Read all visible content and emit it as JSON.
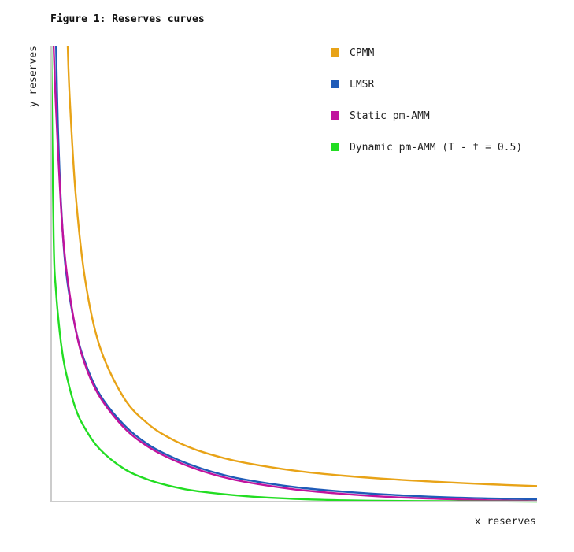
{
  "chart_data": {
    "type": "line",
    "title": "Figure 1: Reserves curves",
    "xlabel": "x reserves",
    "ylabel": "y reserves",
    "xlim": [
      0,
      10
    ],
    "ylim": [
      0,
      10
    ],
    "grid": false,
    "legend_position": "top-right",
    "series": [
      {
        "name": "CPMM",
        "color": "#e8a317",
        "x": [
          0.34,
          0.38,
          0.5,
          0.7,
          1.0,
          1.5,
          2.0,
          2.5,
          3.0,
          3.5,
          4.0,
          5.0,
          6.0,
          7.0,
          8.0,
          9.0,
          10.0
        ],
        "y": [
          10.0,
          8.9,
          6.8,
          4.86,
          3.4,
          2.27,
          1.7,
          1.36,
          1.13,
          0.97,
          0.85,
          0.68,
          0.57,
          0.49,
          0.43,
          0.38,
          0.34
        ]
      },
      {
        "name": "LMSR",
        "color": "#1f5bb8",
        "x": [
          0.1,
          0.14,
          0.2,
          0.3,
          0.5,
          0.7,
          1.0,
          1.5,
          2.0,
          2.5,
          3.0,
          3.5,
          4.0,
          5.0,
          6.0,
          7.0,
          8.0,
          9.0,
          10.0
        ],
        "y": [
          10.0,
          8.2,
          6.6,
          5.1,
          3.8,
          3.05,
          2.35,
          1.68,
          1.25,
          0.97,
          0.76,
          0.6,
          0.48,
          0.32,
          0.22,
          0.15,
          0.1,
          0.07,
          0.05
        ]
      },
      {
        "name": "Static pm-AMM",
        "color": "#c0139e",
        "x": [
          0.05,
          0.1,
          0.2,
          0.3,
          0.5,
          0.7,
          1.0,
          1.5,
          2.0,
          2.5,
          3.0,
          3.5,
          4.0,
          5.0,
          6.0,
          7.0,
          8.0,
          9.0,
          10.0
        ],
        "y": [
          10.0,
          8.6,
          6.5,
          5.2,
          3.8,
          3.0,
          2.3,
          1.62,
          1.2,
          0.92,
          0.71,
          0.55,
          0.43,
          0.27,
          0.17,
          0.1,
          0.06,
          0.03,
          0.01
        ]
      },
      {
        "name": "Dynamic pm-AMM (T - t = 0.5)",
        "color": "#22dd22",
        "x": [
          0.0,
          0.05,
          0.1,
          0.2,
          0.3,
          0.5,
          0.7,
          1.0,
          1.5,
          2.0,
          2.5,
          3.0,
          4.0,
          5.0,
          6.0,
          7.0,
          8.0,
          9.0,
          10.0
        ],
        "y": [
          10.0,
          5.8,
          4.6,
          3.5,
          2.85,
          2.05,
          1.6,
          1.15,
          0.72,
          0.48,
          0.33,
          0.23,
          0.12,
          0.06,
          0.03,
          0.015,
          0.008,
          0.004,
          0.0
        ]
      }
    ]
  }
}
